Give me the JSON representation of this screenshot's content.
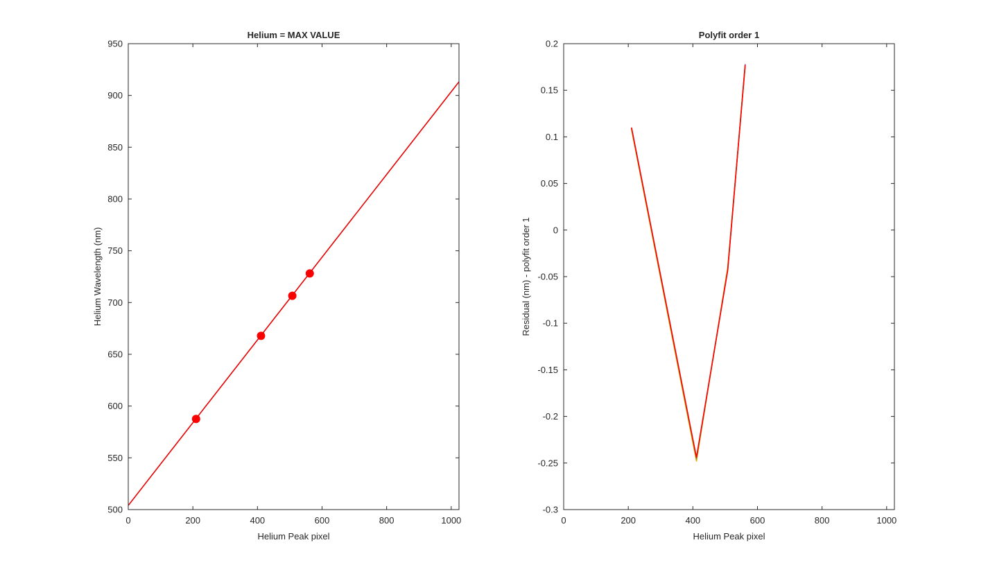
{
  "chart_data": [
    {
      "type": "scatter",
      "title": "Helium = MAX VALUE",
      "xlabel": "Helium Peak pixel",
      "ylabel": "Helium Wavelength (nm)",
      "xlim": [
        0,
        1024
      ],
      "ylim": [
        500,
        950
      ],
      "xticks": [
        0,
        200,
        400,
        600,
        800,
        1000
      ],
      "yticks": [
        500,
        550,
        600,
        650,
        700,
        750,
        800,
        850,
        900,
        950
      ],
      "grid": false,
      "legend": "none",
      "series": [
        {
          "kind": "markers",
          "color": "#ff0000",
          "x": [
            210,
            411,
            508,
            562
          ],
          "y": [
            587.6,
            667.8,
            706.5,
            728.1
          ]
        },
        {
          "kind": "line",
          "color": "#e60000",
          "x": [
            0,
            1024
          ],
          "y": [
            504.0,
            913.2
          ]
        }
      ]
    },
    {
      "type": "line",
      "title": "Polyfit order 1",
      "xlabel": "Helium Peak pixel",
      "ylabel": "Residual (nm) - polyfit order 1",
      "xlim": [
        0,
        1024
      ],
      "ylim": [
        -0.3,
        0.2
      ],
      "xticks": [
        0,
        200,
        400,
        600,
        800,
        1000
      ],
      "yticks": [
        -0.3,
        -0.25,
        -0.2,
        -0.15,
        -0.1,
        -0.05,
        0,
        0.05,
        0.1,
        0.15,
        0.2
      ],
      "ytick_labels": [
        "-0.3",
        "-0.25",
        "-0.2",
        "-0.15",
        "-0.1",
        "-0.05",
        "0",
        "0.05",
        "0.1",
        "0.15",
        "0.2"
      ],
      "grid": false,
      "legend": "none",
      "series": [
        {
          "kind": "line",
          "color": "#ffa500",
          "x": [
            210,
            411,
            508,
            562
          ],
          "y": [
            0.108,
            -0.248,
            -0.04,
            0.176
          ]
        },
        {
          "kind": "line",
          "color": "#7e2f8e",
          "x": [
            210,
            411,
            508,
            562
          ],
          "y": [
            0.11,
            -0.245,
            -0.043,
            0.178
          ]
        },
        {
          "kind": "line",
          "color": "#77ac30",
          "x": [
            210,
            411,
            508,
            562
          ],
          "y": [
            0.109,
            -0.246,
            -0.042,
            0.177
          ]
        },
        {
          "kind": "line",
          "color": "#ff0000",
          "x": [
            210,
            411,
            508,
            562
          ],
          "y": [
            0.11,
            -0.244,
            -0.043,
            0.177
          ]
        }
      ]
    }
  ]
}
